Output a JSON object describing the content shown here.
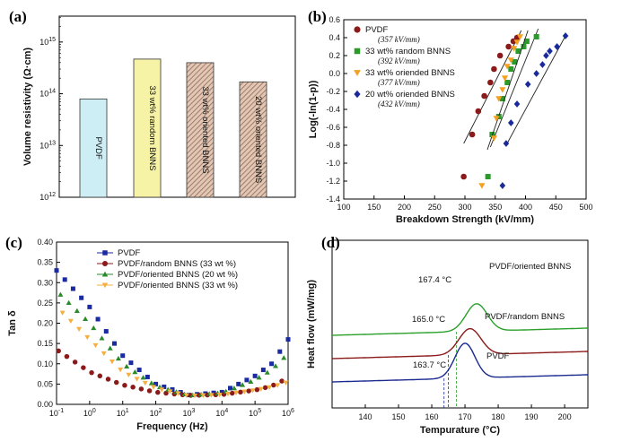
{
  "colors": {
    "pvdf_bar": "#cdeef5",
    "random_bar": "#f6f3a6",
    "oriented_bar": "#e3c7b4",
    "bar_hatch": "#8a6a5a",
    "s_pvdf": "#8b1a1a",
    "s_random": "#2a9a2a",
    "s_oriented33": "#f4a020",
    "s_oriented20": "#1a2a9a",
    "c_blue": "#1a2aa0",
    "c_red": "#8b1a1a",
    "c_green": "#2a8a2a",
    "c_orange": "#f4b040",
    "curve_green": "#2aa02a",
    "curve_red": "#8b1a1a",
    "curve_blue": "#1a2a90"
  },
  "chart_data": [
    {
      "panel": "(a)",
      "type": "bar",
      "ylabel": "Volume resistivity  (Ω·cm)",
      "yscale": "log",
      "ylim": [
        12,
        15.5
      ],
      "y_ticks": [
        {
          "v": 12,
          "base": "10",
          "exp": "12"
        },
        {
          "v": 13,
          "base": "10",
          "exp": "13"
        },
        {
          "v": 14,
          "base": "10",
          "exp": "14"
        },
        {
          "v": 15,
          "base": "10",
          "exp": "15"
        }
      ],
      "categories": [
        "PVDF",
        "33 wt% random BNNS",
        "33 wt% oriented BNNS",
        "20 wt% oriented BNNS"
      ],
      "values_log10": [
        13.9,
        14.67,
        14.6,
        14.23
      ],
      "bar_colors": [
        "pvdf_bar",
        "random_bar",
        "oriented_bar",
        "oriented_bar"
      ],
      "hatched": [
        false,
        false,
        true,
        true
      ]
    },
    {
      "panel": "(b)",
      "type": "scatter",
      "xlabel": "Breakdown Strength (kV/mm)",
      "ylabel": "Log(-ln(1-p))",
      "xlim": [
        100,
        500
      ],
      "ylim": [
        -1.4,
        0.6
      ],
      "x_ticks": [
        100,
        150,
        200,
        250,
        300,
        350,
        400,
        450,
        500
      ],
      "y_ticks": [
        -1.4,
        -1.2,
        -1.0,
        -0.8,
        -0.6,
        -0.4,
        -0.2,
        0.0,
        0.2,
        0.4,
        0.6
      ],
      "series": [
        {
          "name": "PVDF",
          "value_label": "(357 kV/mm)",
          "marker": "circle",
          "color": "s_pvdf",
          "x": [
            298,
            312,
            322,
            332,
            342,
            348,
            358,
            372,
            380,
            386
          ],
          "y": [
            -1.15,
            -0.68,
            -0.42,
            -0.25,
            -0.1,
            0.05,
            0.2,
            0.3,
            0.36,
            0.4
          ],
          "fit": [
            [
              298,
              -0.78
            ],
            [
              393,
              0.48
            ]
          ]
        },
        {
          "name": "33 wt% random BNNS",
          "value_label": "(392 kV/mm)",
          "marker": "square",
          "color": "s_random",
          "x": [
            338,
            345,
            356,
            362,
            370,
            376,
            382,
            388,
            397,
            402,
            418
          ],
          "y": [
            -1.15,
            -0.68,
            -0.48,
            -0.28,
            -0.1,
            0.05,
            0.13,
            0.25,
            0.3,
            0.36,
            0.41
          ],
          "fit": [
            [
              342,
              -0.82
            ],
            [
              421,
              0.5
            ]
          ]
        },
        {
          "name": "33 wt% oriended BNNS",
          "value_label": "(377 kV/mm)",
          "marker": "triangle-down",
          "color": "s_oriented33",
          "x": [
            328,
            348,
            352,
            356,
            362,
            366,
            370,
            376,
            381,
            386,
            391
          ],
          "y": [
            -1.25,
            -0.72,
            -0.5,
            -0.28,
            -0.18,
            -0.05,
            0.08,
            0.15,
            0.28,
            0.35,
            0.41
          ],
          "fit": [
            [
              337,
              -0.85
            ],
            [
              404,
              0.48
            ]
          ]
        },
        {
          "name": "20 wt% oriended BNNS",
          "value_label": "(432 kV/mm)",
          "marker": "diamond",
          "color": "s_oriented20",
          "x": [
            362,
            368,
            376,
            386,
            404,
            418,
            428,
            434,
            440,
            452,
            466
          ],
          "y": [
            -1.25,
            -0.78,
            -0.55,
            -0.34,
            -0.12,
            0.0,
            0.1,
            0.2,
            0.25,
            0.3,
            0.42
          ],
          "fit": [
            [
              368,
              -0.8
            ],
            [
              466,
              0.42
            ]
          ]
        }
      ]
    },
    {
      "panel": "(c)",
      "type": "line",
      "xlabel": "Frequency (Hz)",
      "ylabel": "Tan δ",
      "xscale": "log",
      "xlim": [
        -1,
        6
      ],
      "ylim": [
        0,
        0.4
      ],
      "x_ticks": [
        {
          "v": -1,
          "base": "10",
          "exp": "-1"
        },
        {
          "v": 0,
          "base": "10",
          "exp": "0"
        },
        {
          "v": 1,
          "base": "10",
          "exp": "1"
        },
        {
          "v": 2,
          "base": "10",
          "exp": "2"
        },
        {
          "v": 3,
          "base": "10",
          "exp": "3"
        },
        {
          "v": 4,
          "base": "10",
          "exp": "4"
        },
        {
          "v": 5,
          "base": "10",
          "exp": "5"
        },
        {
          "v": 6,
          "base": "10",
          "exp": "6"
        }
      ],
      "y_ticks": [
        0.0,
        0.05,
        0.1,
        0.15,
        0.2,
        0.25,
        0.3,
        0.35,
        0.4
      ],
      "series": [
        {
          "name": "PVDF",
          "marker": "square",
          "color": "c_blue",
          "x": [
            -1,
            0,
            1,
            2,
            3,
            4,
            5,
            5.5,
            6
          ],
          "y": [
            0.33,
            0.24,
            0.12,
            0.05,
            0.023,
            0.03,
            0.07,
            0.1,
            0.16
          ]
        },
        {
          "name": "PVDF/random BNNS  (33 wt %)",
          "marker": "circle",
          "color": "c_red",
          "x": [
            -1,
            0,
            1,
            2,
            3,
            4,
            5,
            5.5,
            6
          ],
          "y": [
            0.135,
            0.08,
            0.048,
            0.03,
            0.022,
            0.024,
            0.035,
            0.045,
            0.065
          ]
        },
        {
          "name": "PVDF/oriented BNNS (20 wt %)",
          "marker": "triangle-up",
          "color": "c_green",
          "x": [
            -1,
            0,
            1,
            2,
            3,
            4,
            5,
            5.5,
            6
          ],
          "y": [
            0.28,
            0.2,
            0.1,
            0.045,
            0.022,
            0.028,
            0.06,
            0.085,
            0.125
          ]
        },
        {
          "name": "PVDF/oriented BNNS  (33 wt %)",
          "marker": "triangle-down",
          "color": "c_orange",
          "x": [
            -1,
            0,
            1,
            2,
            3,
            4,
            5,
            5.5,
            6
          ],
          "y": [
            0.24,
            0.16,
            0.08,
            0.04,
            0.021,
            0.024,
            0.035,
            0.043,
            0.055
          ]
        }
      ]
    },
    {
      "panel": "(d)",
      "type": "line",
      "xlabel": "Tempurature (°C)",
      "ylabel": "Heat flow (mW/mg)",
      "xlim": [
        130,
        207
      ],
      "x_ticks": [
        140,
        150,
        160,
        170,
        180,
        190,
        200
      ],
      "y_ticks_shown": false,
      "series": [
        {
          "name": "PVDF/oriented BNNS",
          "color": "curve_green",
          "peak_label": "167.4 °C",
          "peak_x": 167.4,
          "base": 2.0,
          "peak": 1.18,
          "center": 173.5,
          "width": 3.2
        },
        {
          "name": "PVDF/random BNNS",
          "color": "curve_red",
          "peak_label": "165.0 °C",
          "peak_x": 165.0,
          "base": 1.0,
          "peak": 1.12,
          "center": 171.5,
          "width": 3.3
        },
        {
          "name": "PVDF",
          "color": "curve_blue",
          "peak_label": "163.7 °C",
          "peak_x": 163.7,
          "base": 0.0,
          "peak": 1.5,
          "center": 170.0,
          "width": 3.0
        }
      ]
    }
  ]
}
